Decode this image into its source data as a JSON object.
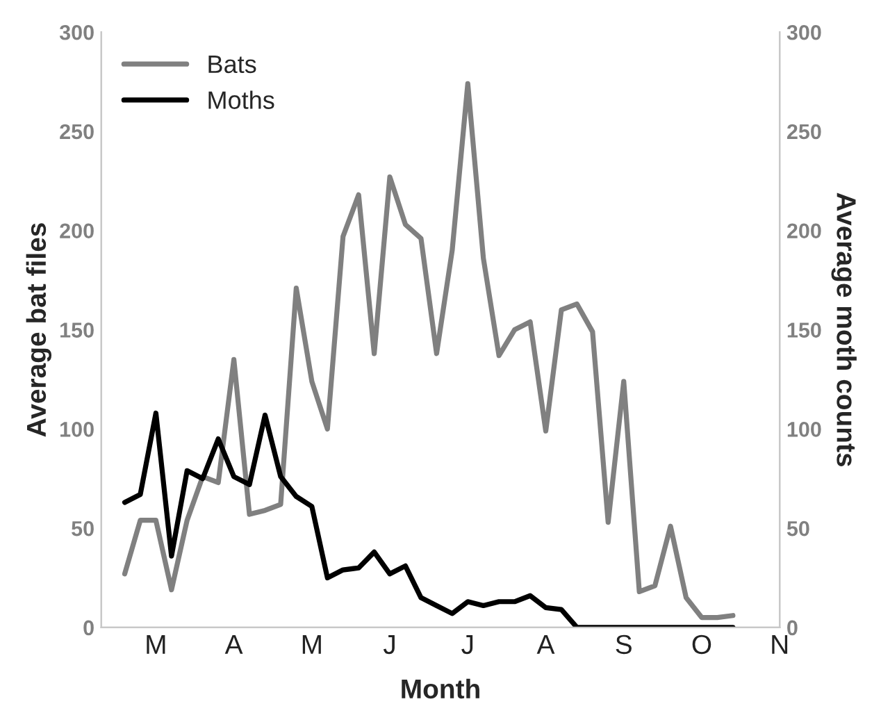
{
  "chart_data": {
    "type": "line",
    "xlabel": "Month",
    "ylabel": "Average bat files",
    "y2label": "Average moth counts",
    "categories": [
      null,
      null,
      "M",
      null,
      null,
      null,
      null,
      "A",
      null,
      null,
      null,
      null,
      "M",
      null,
      null,
      null,
      null,
      "J",
      null,
      null,
      null,
      null,
      "J",
      null,
      null,
      null,
      null,
      "A",
      null,
      null,
      null,
      null,
      "S",
      null,
      null,
      null,
      null,
      "O",
      null,
      null,
      null,
      null,
      "N"
    ],
    "series": [
      {
        "name": "Bats",
        "color": "#808080",
        "values": [
          27,
          54,
          54,
          19,
          54,
          76,
          73,
          135,
          57,
          59,
          62,
          171,
          124,
          100,
          197,
          218,
          138,
          227,
          203,
          196,
          138,
          190,
          274,
          186,
          137,
          150,
          154,
          99,
          160,
          163,
          149,
          53,
          124,
          18,
          21,
          51,
          15,
          5,
          5,
          6,
          null,
          null,
          null
        ]
      },
      {
        "name": "Moths",
        "color": "#000000",
        "axis": "y2",
        "values": [
          63,
          67,
          108,
          36,
          79,
          75,
          95,
          76,
          72,
          107,
          76,
          66,
          61,
          25,
          29,
          30,
          38,
          27,
          31,
          15,
          11,
          7,
          13,
          11,
          13,
          13,
          16,
          10,
          9,
          0,
          0,
          0,
          0,
          0,
          0,
          0,
          0,
          0,
          0,
          0,
          null,
          null,
          null
        ]
      }
    ],
    "ylim": [
      0,
      300
    ],
    "yticks": [
      0,
      50,
      100,
      150,
      200,
      250,
      300
    ],
    "y2lim": [
      0,
      300
    ],
    "y2ticks": [
      0,
      50,
      100,
      150,
      200,
      250,
      300
    ],
    "grid": false,
    "legend": "top left",
    "marker": "none",
    "line_style": "solid"
  }
}
